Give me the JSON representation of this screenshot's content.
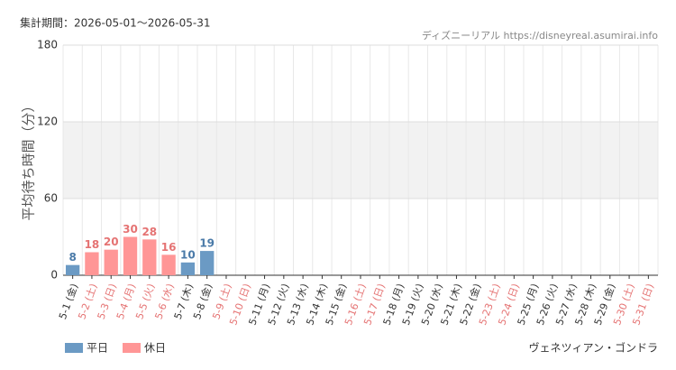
{
  "chart_data": {
    "type": "bar",
    "period": "集計期間：2026-05-01～2026-05-31",
    "source": "ディズニーリアル https://disneyreal.asumirai.info",
    "y_label": "平均待ち時間（分）",
    "attraction": "ヴェネツィアン・ゴンドラ",
    "categories": [
      "5-1 (金)",
      "5-2 (土)",
      "5-3 (日)",
      "5-4 (月)",
      "5-5 (火)",
      "5-6 (水)",
      "5-7 (木)",
      "5-8 (金)",
      "5-9 (土)",
      "5-10 (日)",
      "5-11 (月)",
      "5-12 (火)",
      "5-13 (水)",
      "5-14 (木)",
      "5-15 (金)",
      "5-16 (土)",
      "5-17 (日)",
      "5-18 (月)",
      "5-19 (火)",
      "5-20 (水)",
      "5-21 (木)",
      "5-22 (金)",
      "5-23 (土)",
      "5-24 (日)",
      "5-25 (月)",
      "5-26 (火)",
      "5-27 (水)",
      "5-28 (木)",
      "5-29 (金)",
      "5-30 (土)",
      "5-31 (日)"
    ],
    "category_colors": [
      "#333",
      "#e57373",
      "#e57373",
      "#e57373",
      "#e57373",
      "#e57373",
      "#333",
      "#333",
      "#e57373",
      "#e57373",
      "#333",
      "#333",
      "#333",
      "#333",
      "#333",
      "#e57373",
      "#e57373",
      "#333",
      "#333",
      "#333",
      "#333",
      "#333",
      "#e57373",
      "#e57373",
      "#333",
      "#333",
      "#333",
      "#333",
      "#333",
      "#e57373",
      "#e57373"
    ],
    "series": [
      {
        "name": "平日",
        "color": "#6b9ac4",
        "label_color": "#4a7aa8",
        "values": [
          8,
          null,
          null,
          null,
          null,
          null,
          10,
          19,
          null,
          null,
          null,
          null,
          null,
          null,
          null,
          null,
          null,
          null,
          null,
          null,
          null,
          null,
          null,
          null,
          null,
          null,
          null,
          null,
          null,
          null,
          null
        ]
      },
      {
        "name": "休日",
        "color": "#ff9696",
        "label_color": "#e57373",
        "values": [
          null,
          18,
          20,
          30,
          28,
          16,
          null,
          null,
          null,
          null,
          null,
          null,
          null,
          null,
          null,
          null,
          null,
          null,
          null,
          null,
          null,
          null,
          null,
          null,
          null,
          null,
          null,
          null,
          null,
          null,
          null
        ]
      }
    ],
    "ylim": [
      0,
      180
    ],
    "yticks": [
      0,
      60,
      120,
      180
    ],
    "shaded_band": [
      60,
      120
    ],
    "grid": true
  }
}
